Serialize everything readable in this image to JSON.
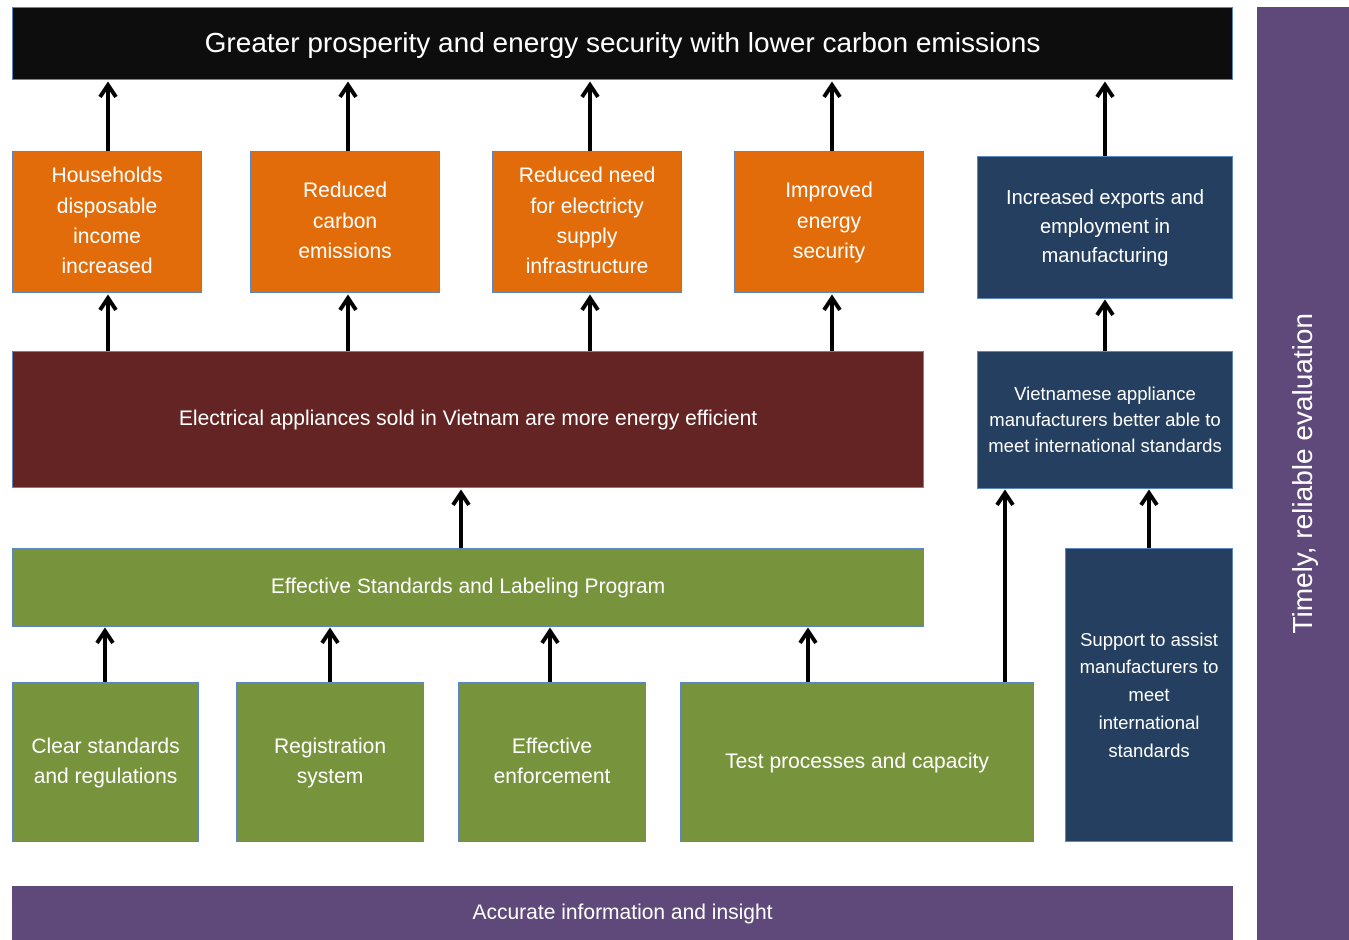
{
  "header": {
    "title": "Greater prosperity and energy security with lower carbon emissions"
  },
  "side": {
    "label": "Timely, reliable evaluation"
  },
  "footer": {
    "label": "Accurate information and insight"
  },
  "outcomes": [
    "Households disposable income increased",
    "Reduced carbon emissions",
    "Reduced need for electricty supply infrastructure",
    "Improved energy security"
  ],
  "manufacturing": {
    "exports": "Increased exports and employment in manufacturing",
    "standards": "Vietnamese appliance manufacturers better able to meet international standards",
    "support": "Support to assist manufacturers to meet international standards"
  },
  "efficiency": "Electrical appliances sold in Vietnam are more energy efficient",
  "program": "Effective Standards and Labeling Program",
  "components": [
    "Clear standards and regulations",
    "Registration system",
    "Effective enforcement",
    "Test processes and capacity"
  ]
}
